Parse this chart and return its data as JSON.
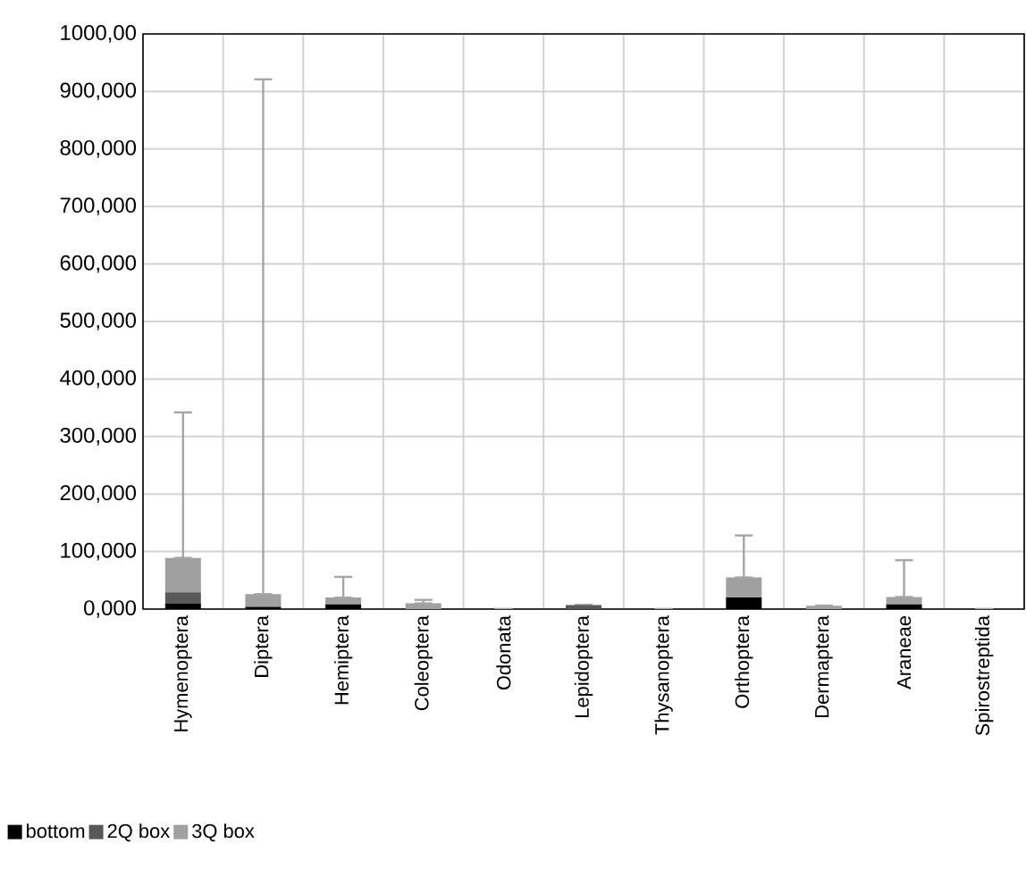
{
  "chart_data": {
    "type": "bar",
    "stacked": true,
    "categories": [
      "Hymenoptera",
      "Diptera",
      "Hemiptera",
      "Coleoptera",
      "Odonata",
      "Lepidoptera",
      "Thysanoptera",
      "Orthoptera",
      "Dermaptera",
      "Araneae",
      "Spirostreptida"
    ],
    "series": [
      {
        "name": "bottom",
        "color": "#000000",
        "values": [
          10,
          4,
          8,
          0,
          0,
          0,
          0,
          20,
          0,
          8,
          0
        ]
      },
      {
        "name": "2Q box",
        "color": "#595959",
        "values": [
          19,
          0,
          0,
          0,
          0,
          7,
          0,
          0,
          0,
          0,
          0
        ]
      },
      {
        "name": "3Q box",
        "color": "#a0a0a0",
        "values": [
          60,
          22,
          12,
          10,
          0,
          0,
          0,
          35,
          6,
          13,
          0
        ],
        "errors": [
          [
            89,
            342
          ],
          [
            26,
            921
          ],
          [
            20,
            56
          ],
          [
            10,
            16
          ],
          null,
          null,
          null,
          [
            55,
            128
          ],
          null,
          [
            21,
            85
          ],
          null
        ]
      }
    ],
    "ylim": [
      0,
      1000
    ],
    "yticks": [
      {
        "value": 0,
        "label": "0,000"
      },
      {
        "value": 100,
        "label": "100,000"
      },
      {
        "value": 200,
        "label": "200,000"
      },
      {
        "value": 300,
        "label": "300,000"
      },
      {
        "value": 400,
        "label": "400,000"
      },
      {
        "value": 500,
        "label": "500,000"
      },
      {
        "value": 600,
        "label": "600,000"
      },
      {
        "value": 700,
        "label": "700,000"
      },
      {
        "value": 800,
        "label": "800,000"
      },
      {
        "value": 900,
        "label": "900,000"
      },
      {
        "value": 1000,
        "label": "1000,00"
      }
    ],
    "grid": true,
    "legend": "bottom left"
  }
}
